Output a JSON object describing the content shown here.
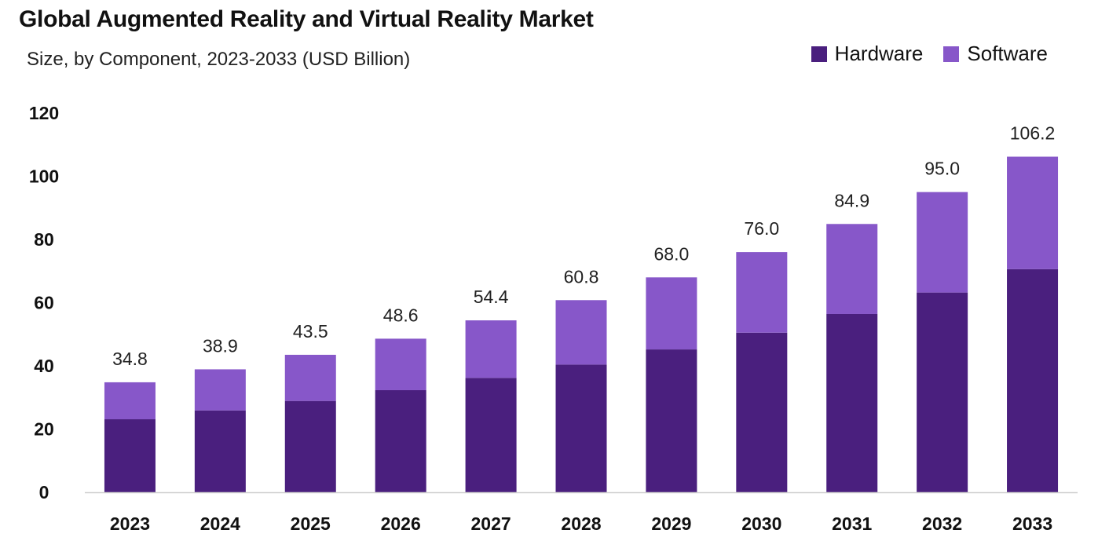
{
  "chart_data": {
    "type": "bar",
    "stacked": true,
    "title": "Global Augmented Reality and Virtual Reality Market",
    "subtitle": "Size, by Component, 2023-2033 (USD Billion)",
    "categories": [
      "2023",
      "2024",
      "2025",
      "2026",
      "2027",
      "2028",
      "2029",
      "2030",
      "2031",
      "2032",
      "2033"
    ],
    "series": [
      {
        "name": "Hardware",
        "color": "#4a1f7e",
        "values": [
          23.1,
          25.9,
          28.9,
          32.3,
          36.2,
          40.4,
          45.2,
          50.5,
          56.4,
          63.2,
          70.6
        ]
      },
      {
        "name": "Software",
        "color": "#8757c9",
        "values": [
          11.7,
          13.0,
          14.6,
          16.3,
          18.2,
          20.4,
          22.8,
          25.5,
          28.5,
          31.8,
          35.6
        ]
      }
    ],
    "totals": [
      "34.8",
      "38.9",
      "43.5",
      "48.6",
      "54.4",
      "60.8",
      "68.0",
      "76.0",
      "84.9",
      "95.0",
      "106.2"
    ],
    "yticks": [
      "0",
      "20",
      "40",
      "60",
      "80",
      "100",
      "120"
    ],
    "ylim": [
      0,
      120
    ],
    "xlabel": "",
    "ylabel": "",
    "grid": false,
    "legend_position": "top-right"
  }
}
